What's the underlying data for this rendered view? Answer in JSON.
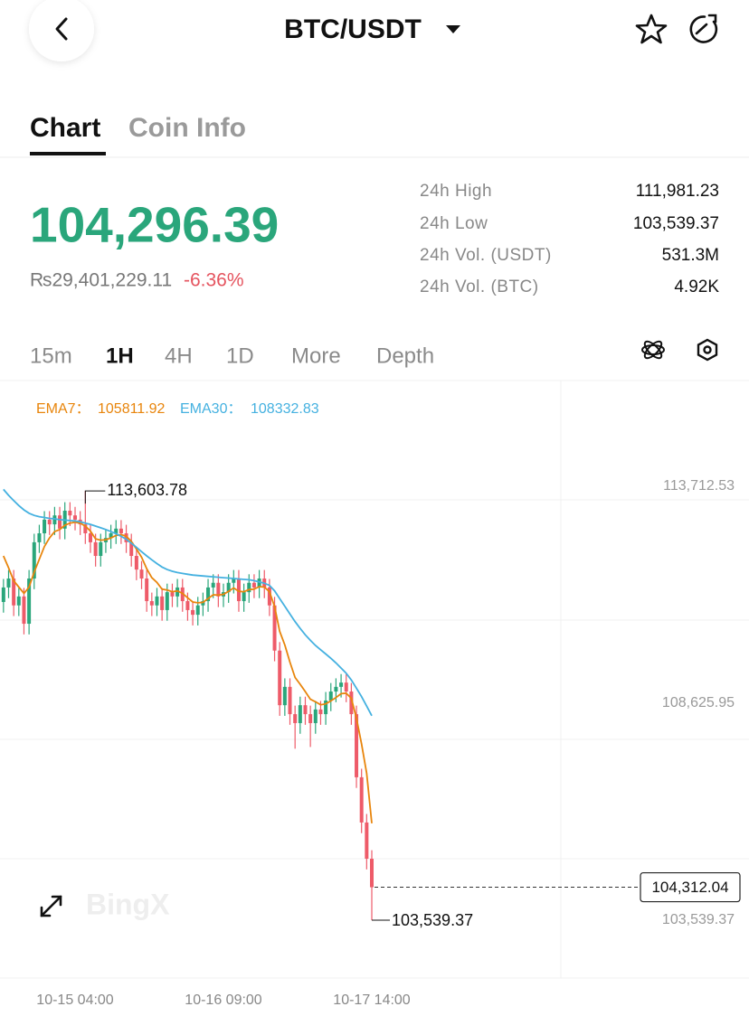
{
  "header": {
    "title": "BTC/USDT"
  },
  "tabs": [
    "Chart",
    "Coin Info"
  ],
  "ticker": {
    "last_price": "104,296.39",
    "fiat_price": "₨29,401,229.11",
    "change": "-6.36%"
  },
  "stats": [
    {
      "label": "24h High",
      "value": "111,981.23"
    },
    {
      "label": "24h Low",
      "value": "103,539.37"
    },
    {
      "label": "24h Vol. (USDT)",
      "value": "531.3M"
    },
    {
      "label": "24h Vol. (BTC)",
      "value": "4.92K"
    }
  ],
  "intervals": [
    "15m",
    "1H",
    "4H",
    "1D",
    "More",
    "Depth"
  ],
  "watermark": "BingX",
  "chart_data": {
    "type": "candlestick",
    "categories": [
      null,
      null,
      null,
      null,
      null,
      null,
      null,
      null,
      null,
      null,
      null,
      null,
      null,
      null,
      "10-15 04:00",
      null,
      null,
      null,
      null,
      null,
      null,
      null,
      null,
      null,
      null,
      null,
      null,
      null,
      null,
      null,
      null,
      null,
      null,
      null,
      null,
      null,
      null,
      null,
      null,
      null,
      null,
      null,
      null,
      "10-16 09:00",
      null,
      null,
      null,
      null,
      null,
      null,
      null,
      null,
      null,
      null,
      null,
      null,
      null,
      null,
      null,
      null,
      null,
      null,
      null,
      null,
      null,
      null,
      null,
      null,
      null,
      null,
      null,
      null,
      "10-17 14:00"
    ],
    "open": [
      111000,
      111340,
      111550,
      110920,
      111130,
      110490,
      111550,
      112400,
      112610,
      112930,
      112820,
      113030,
      112720,
      113140,
      113030,
      112930,
      112820,
      112610,
      112400,
      112080,
      112400,
      112500,
      112610,
      112720,
      112610,
      112400,
      112080,
      111760,
      111550,
      111020,
      110920,
      111130,
      110810,
      111230,
      111130,
      111340,
      111020,
      110810,
      110700,
      110920,
      111020,
      111340,
      111450,
      111130,
      111230,
      111450,
      111550,
      111020,
      111230,
      111450,
      111340,
      111550,
      111340,
      110920,
      109860,
      108580,
      109010,
      108370,
      108160,
      108580,
      108370,
      108160,
      108480,
      108370,
      108690,
      108900,
      109010,
      109110,
      108900,
      108370,
      106890,
      105830,
      104980
    ],
    "high": [
      111540,
      111750,
      111750,
      111330,
      111330,
      111750,
      112600,
      112810,
      113130,
      113130,
      113230,
      113230,
      113340,
      113340,
      113230,
      113130,
      113603.78,
      112810,
      112600,
      112600,
      112700,
      112810,
      112920,
      112920,
      112810,
      112600,
      112280,
      111960,
      111750,
      111220,
      111330,
      111330,
      111430,
      111430,
      111540,
      111540,
      111220,
      111010,
      111120,
      111220,
      111540,
      111650,
      111650,
      111430,
      111650,
      111750,
      111750,
      111430,
      111650,
      111650,
      111750,
      111750,
      111540,
      111120,
      110060,
      109210,
      109210,
      108570,
      108780,
      108780,
      108570,
      108680,
      108680,
      108890,
      109100,
      109210,
      109310,
      109310,
      109100,
      108570,
      107090,
      106030,
      105180
    ],
    "low": [
      110750,
      111090,
      110670,
      110670,
      110240,
      110240,
      111300,
      112150,
      112360,
      112570,
      112570,
      112470,
      112470,
      112780,
      112680,
      112570,
      112360,
      112150,
      111830,
      111830,
      112150,
      112250,
      112360,
      112360,
      112150,
      111830,
      111510,
      111300,
      110770,
      110670,
      110670,
      110560,
      110560,
      110880,
      110880,
      110770,
      110560,
      110450,
      110450,
      110670,
      110770,
      111090,
      110880,
      110880,
      110980,
      111200,
      110770,
      110770,
      110980,
      111090,
      111090,
      111090,
      110670,
      109610,
      108330,
      108330,
      108120,
      107560,
      107910,
      108120,
      107600,
      107910,
      108120,
      108120,
      108440,
      108650,
      108760,
      108650,
      108120,
      106640,
      105580,
      104730,
      103539.37
    ],
    "close": [
      111340,
      111550,
      110920,
      111130,
      110490,
      111550,
      112400,
      112610,
      112930,
      112820,
      113030,
      112720,
      113140,
      113030,
      112930,
      112820,
      112610,
      112400,
      112080,
      112400,
      112500,
      112610,
      112720,
      112610,
      112400,
      112080,
      111760,
      111550,
      111020,
      110920,
      111130,
      110810,
      111230,
      111130,
      111340,
      111020,
      110810,
      110700,
      110920,
      111020,
      111340,
      111450,
      111130,
      111230,
      111450,
      111550,
      111020,
      111230,
      111450,
      111340,
      111550,
      111340,
      110920,
      109860,
      108580,
      109010,
      108370,
      108160,
      108580,
      108370,
      108160,
      108480,
      108370,
      108690,
      108900,
      109010,
      109110,
      108900,
      108370,
      106890,
      105830,
      104980,
      104312.04
    ],
    "up_color": "#2aa67b",
    "down_color": "#ee5b69",
    "series": [
      {
        "name": "EMA7：",
        "color": "#e8850c",
        "values": [
          112080,
          111800,
          111500,
          111350,
          111200,
          111350,
          111700,
          112000,
          112300,
          112500,
          112650,
          112700,
          112800,
          112850,
          112870,
          112850,
          112780,
          112660,
          112480,
          112450,
          112460,
          112500,
          112560,
          112580,
          112540,
          112420,
          112240,
          112050,
          111780,
          111570,
          111460,
          111300,
          111280,
          111240,
          111260,
          111200,
          111100,
          111000,
          110980,
          110990,
          111080,
          111170,
          111160,
          111180,
          111250,
          111330,
          111250,
          111240,
          111290,
          111300,
          111360,
          111350,
          111240,
          110890,
          110310,
          109990,
          109590,
          109230,
          109070,
          108900,
          108720,
          108660,
          108590,
          108610,
          108680,
          108760,
          108850,
          108860,
          108740,
          108280,
          107670,
          106990,
          105811.92
        ]
      },
      {
        "name": "EMA30：",
        "color": "#45b1e0",
        "values": [
          113640,
          113500,
          113380,
          113260,
          113160,
          113080,
          113030,
          113000,
          112980,
          112960,
          112950,
          112930,
          112920,
          112910,
          112900,
          112880,
          112850,
          112820,
          112780,
          112740,
          112700,
          112650,
          112600,
          112540,
          112470,
          112380,
          112280,
          112180,
          112080,
          111990,
          111900,
          111820,
          111760,
          111720,
          111690,
          111670,
          111650,
          111630,
          111620,
          111610,
          111600,
          111590,
          111580,
          111570,
          111560,
          111550,
          111540,
          111530,
          111520,
          111500,
          111470,
          111440,
          111390,
          111260,
          111080,
          110900,
          110720,
          110540,
          110380,
          110230,
          110100,
          109980,
          109880,
          109780,
          109680,
          109570,
          109450,
          109330,
          109170,
          108980,
          108780,
          108560,
          108332.83
        ]
      }
    ],
    "ylim": [
      102183,
      116213
    ],
    "yticks": [
      {
        "value": 113712.53,
        "label": "113,712.53"
      },
      {
        "value": 108625.95,
        "label": "108,625.95"
      },
      {
        "value": 103539.37,
        "label": "103,539.37"
      }
    ],
    "high_marker": {
      "value": 113603.78,
      "label": "113,603.78"
    },
    "low_marker": {
      "value": 103539.37,
      "label": "103,539.37"
    },
    "last_price": {
      "value": 104312.04,
      "label": "104,312.04"
    }
  }
}
